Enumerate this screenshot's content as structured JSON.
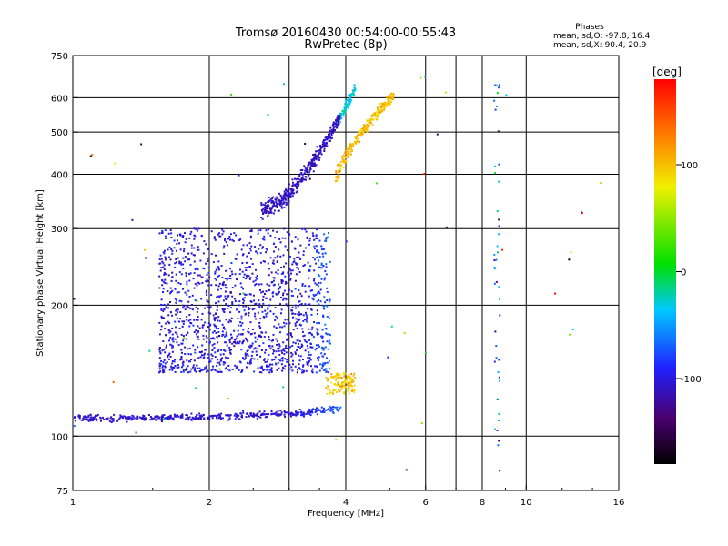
{
  "chart_data": {
    "type": "scatter",
    "title": "Tromsø 20160430 00:54:00-00:55:43",
    "subtitle": "RwPretec (8p)",
    "xlabel": "Frequency [MHz]",
    "ylabel": "Stationary phase Virtual Height [km]",
    "x_scale": "log",
    "y_scale": "log",
    "xlim": [
      1,
      16
    ],
    "ylim": [
      75,
      750
    ],
    "x_ticks": [
      1,
      2,
      4,
      6,
      8,
      10,
      16
    ],
    "x_tick_labels": [
      "1",
      "2",
      "4",
      "6",
      "8",
      "10",
      "16"
    ],
    "y_ticks": [
      75,
      100,
      200,
      300,
      400,
      500,
      600,
      750
    ],
    "y_tick_labels": [
      "75",
      "100",
      "200",
      "300",
      "400",
      "500",
      "600",
      "750"
    ],
    "extra_x_gridlines": [
      3,
      7
    ],
    "grid": true,
    "stats": {
      "heading": "Phases",
      "line1": "mean, sd,O:  -97.8, 16.4",
      "line2": "mean, sd,X:  90.4, 20.9"
    },
    "colorbar": {
      "label": "[deg]",
      "range": [
        -180,
        180
      ],
      "ticks": [
        100,
        0,
        -100
      ],
      "tick_labels": [
        "100",
        "0",
        "-100"
      ],
      "colormap": "rainbow"
    },
    "traces": [
      {
        "name": "E layer O-trace",
        "freq_range": [
          1.0,
          3.9
        ],
        "height_range": [
          108,
          130
        ],
        "phase": -105
      },
      {
        "name": "E layer X-trace",
        "freq_range": [
          3.6,
          4.2
        ],
        "height_range": [
          125,
          140
        ],
        "phase": 95
      },
      {
        "name": "F1 cusp",
        "freq_range": [
          1.6,
          3.7
        ],
        "height_range": [
          140,
          300
        ],
        "phase": -100
      },
      {
        "name": "F2 O-trace",
        "freq_range": [
          2.6,
          4.2
        ],
        "height_range": [
          330,
          650
        ],
        "phase": -110
      },
      {
        "name": "F2 X-trace",
        "freq_range": [
          3.8,
          5.1
        ],
        "height_range": [
          390,
          650
        ],
        "phase": 100
      }
    ]
  }
}
